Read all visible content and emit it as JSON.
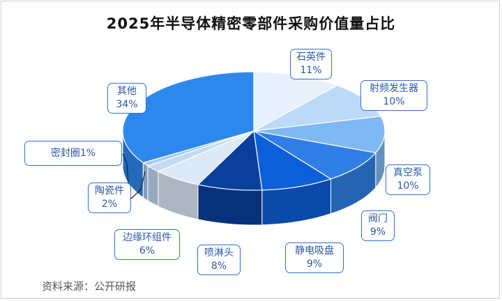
{
  "chart_data": {
    "type": "pie",
    "title": "2025年半导体精密零部件采购价值量占比",
    "unit": "%",
    "slices": [
      {
        "name": "石英件",
        "value": 11,
        "label": "11%",
        "color": "#e6f1fc"
      },
      {
        "name": "射频发生器",
        "value": 10,
        "label": "10%",
        "color": "#bcd9f7"
      },
      {
        "name": "真空泵",
        "value": 10,
        "label": "10%",
        "color": "#7fb8f2"
      },
      {
        "name": "阀门",
        "value": 9,
        "label": "9%",
        "color": "#2f7fe6"
      },
      {
        "name": "静电吸盘",
        "value": 9,
        "label": "9%",
        "color": "#0d5fd9"
      },
      {
        "name": "喷淋头",
        "value": 8,
        "label": "8%",
        "color": "#0a3f9e"
      },
      {
        "name": "边缘环组件",
        "value": 6,
        "label": "6%",
        "color": "#dde9f7"
      },
      {
        "name": "陶瓷件",
        "value": 2,
        "label": "2%",
        "color": "#c3daf2"
      },
      {
        "name": "密封圈",
        "value": 1,
        "label": "1%",
        "color": "#a9c9ee"
      },
      {
        "name": "其他",
        "value": 34,
        "label": "34%",
        "color": "#2e88ec"
      }
    ]
  },
  "source": "资料来源：公开研报"
}
